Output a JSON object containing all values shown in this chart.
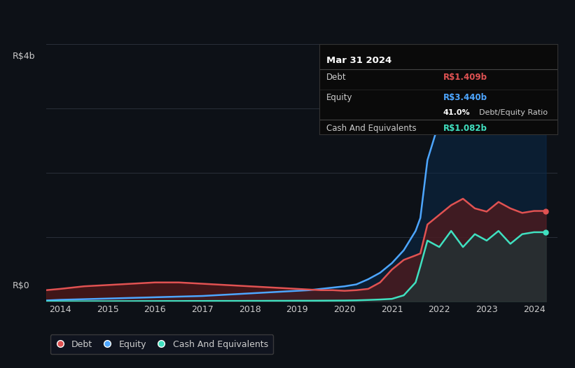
{
  "bg_color": "#0d1117",
  "plot_bg_color": "#0d1117",
  "grid_color": "#2a2f3a",
  "text_color": "#cccccc",
  "ylabel_text": "R$4b",
  "y0_text": "R$0",
  "ylim": [
    0,
    4.0
  ],
  "xlim": [
    2013.7,
    2024.5
  ],
  "x_ticks": [
    2014,
    2015,
    2016,
    2017,
    2018,
    2019,
    2020,
    2021,
    2022,
    2023,
    2024
  ],
  "debt_color": "#e05252",
  "equity_color": "#4da6ff",
  "cash_color": "#40e0c0",
  "debt_fill_color": "#5c1a1a",
  "equity_fill_color": "#0a2a4a",
  "cash_fill_color": "#1a3a3a",
  "tooltip_bg": "#0a0a0a",
  "tooltip_border": "#333333",
  "tooltip_title": "Mar 31 2024",
  "tooltip_debt_label": "Debt",
  "tooltip_debt_value": "R$1.409b",
  "tooltip_equity_label": "Equity",
  "tooltip_equity_value": "R$3.440b",
  "tooltip_ratio_pct": "41.0%",
  "tooltip_ratio_label": "Debt/Equity Ratio",
  "tooltip_cash_label": "Cash And Equivalents",
  "tooltip_cash_value": "R$1.082b",
  "legend_labels": [
    "Debt",
    "Equity",
    "Cash And Equivalents"
  ],
  "debt_x": [
    2013.7,
    2014.0,
    2014.25,
    2014.5,
    2014.75,
    2015.0,
    2015.25,
    2015.5,
    2015.75,
    2016.0,
    2016.25,
    2016.5,
    2016.75,
    2017.0,
    2017.25,
    2017.5,
    2017.75,
    2018.0,
    2018.25,
    2018.5,
    2018.75,
    2019.0,
    2019.25,
    2019.5,
    2019.75,
    2020.0,
    2020.25,
    2020.5,
    2020.75,
    2021.0,
    2021.25,
    2021.5,
    2021.6,
    2021.75,
    2022.0,
    2022.25,
    2022.5,
    2022.75,
    2023.0,
    2023.25,
    2023.5,
    2023.75,
    2024.0,
    2024.25
  ],
  "debt_y": [
    0.18,
    0.2,
    0.22,
    0.24,
    0.25,
    0.26,
    0.27,
    0.28,
    0.29,
    0.3,
    0.3,
    0.3,
    0.29,
    0.28,
    0.27,
    0.26,
    0.25,
    0.24,
    0.23,
    0.22,
    0.21,
    0.2,
    0.19,
    0.18,
    0.18,
    0.17,
    0.18,
    0.2,
    0.3,
    0.5,
    0.65,
    0.72,
    0.75,
    1.2,
    1.35,
    1.5,
    1.6,
    1.45,
    1.4,
    1.55,
    1.45,
    1.38,
    1.41,
    1.41
  ],
  "equity_x": [
    2013.7,
    2014.0,
    2014.25,
    2014.5,
    2014.75,
    2015.0,
    2015.25,
    2015.5,
    2015.75,
    2016.0,
    2016.25,
    2016.5,
    2016.75,
    2017.0,
    2017.25,
    2017.5,
    2017.75,
    2018.0,
    2018.25,
    2018.5,
    2018.75,
    2019.0,
    2019.25,
    2019.5,
    2019.75,
    2020.0,
    2020.25,
    2020.5,
    2020.75,
    2021.0,
    2021.25,
    2021.5,
    2021.6,
    2021.75,
    2022.0,
    2022.25,
    2022.5,
    2022.75,
    2023.0,
    2023.25,
    2023.5,
    2023.75,
    2024.0,
    2024.25
  ],
  "equity_y": [
    0.02,
    0.03,
    0.035,
    0.04,
    0.045,
    0.05,
    0.055,
    0.06,
    0.065,
    0.07,
    0.075,
    0.08,
    0.085,
    0.09,
    0.1,
    0.11,
    0.12,
    0.13,
    0.14,
    0.15,
    0.16,
    0.17,
    0.18,
    0.2,
    0.22,
    0.24,
    0.27,
    0.35,
    0.45,
    0.6,
    0.8,
    1.1,
    1.3,
    2.2,
    2.8,
    3.0,
    3.1,
    3.2,
    3.0,
    3.2,
    3.3,
    3.35,
    3.44,
    3.44
  ],
  "cash_x": [
    2013.7,
    2014.0,
    2014.25,
    2014.5,
    2014.75,
    2015.0,
    2015.25,
    2015.5,
    2015.75,
    2016.0,
    2016.25,
    2016.5,
    2016.75,
    2017.0,
    2017.25,
    2017.5,
    2017.75,
    2018.0,
    2018.25,
    2018.5,
    2018.75,
    2019.0,
    2019.25,
    2019.5,
    2019.75,
    2020.0,
    2020.25,
    2020.5,
    2020.75,
    2021.0,
    2021.25,
    2021.5,
    2021.6,
    2021.75,
    2022.0,
    2022.25,
    2022.5,
    2022.75,
    2023.0,
    2023.25,
    2023.5,
    2023.75,
    2024.0,
    2024.25
  ],
  "cash_y": [
    0.005,
    0.006,
    0.007,
    0.007,
    0.008,
    0.008,
    0.009,
    0.009,
    0.01,
    0.01,
    0.011,
    0.011,
    0.012,
    0.012,
    0.013,
    0.013,
    0.013,
    0.014,
    0.014,
    0.015,
    0.015,
    0.016,
    0.016,
    0.017,
    0.018,
    0.019,
    0.022,
    0.028,
    0.035,
    0.045,
    0.1,
    0.3,
    0.55,
    0.95,
    0.85,
    1.1,
    0.85,
    1.05,
    0.95,
    1.1,
    0.9,
    1.05,
    1.08,
    1.08
  ]
}
